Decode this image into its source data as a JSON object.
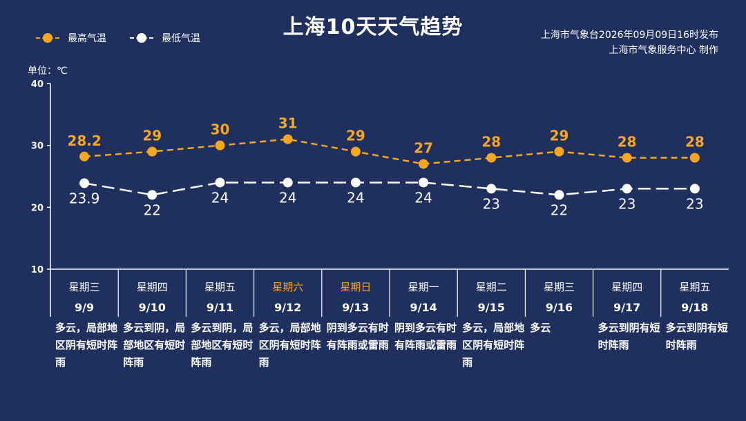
{
  "header": {
    "title": "上海10天天气趋势",
    "source_line1": "上海市气象台2026年09月09日16时发布",
    "source_line2": "上海市气象服务中心  制作"
  },
  "unit_label": "单位：℃",
  "colors": {
    "background": "#1f2f5e",
    "high": "#f5a623",
    "low": "#ffffff",
    "weekend": "#f5a623",
    "axis": "#ffffff"
  },
  "chart_data": {
    "type": "line",
    "title": "上海10天天气趋势",
    "ylabel": "单位：℃",
    "ylim": [
      10,
      40
    ],
    "yticks": [
      10,
      20,
      30,
      40
    ],
    "grid": false,
    "legend_position": "top-left",
    "categories": [
      "9/9",
      "9/10",
      "9/11",
      "9/12",
      "9/13",
      "9/14",
      "9/15",
      "9/16",
      "9/17",
      "9/18"
    ],
    "weekdays": [
      "星期三",
      "星期四",
      "星期五",
      "星期六",
      "星期日",
      "星期一",
      "星期二",
      "星期三",
      "星期四",
      "星期五"
    ],
    "weekend": [
      false,
      false,
      false,
      true,
      true,
      false,
      false,
      false,
      false,
      false
    ],
    "series": [
      {
        "name": "最高气温",
        "values": [
          28.2,
          29,
          30,
          31,
          29,
          27,
          28,
          29,
          28,
          28
        ],
        "labels": [
          "28.2",
          "29",
          "30",
          "31",
          "29",
          "27",
          "28",
          "29",
          "28",
          "28"
        ]
      },
      {
        "name": "最低气温",
        "values": [
          23.9,
          22,
          24,
          24,
          24,
          24,
          23,
          22,
          23,
          23
        ],
        "labels": [
          "23.9",
          "22",
          "24",
          "24",
          "24",
          "24",
          "23",
          "22",
          "23",
          "23"
        ]
      }
    ]
  },
  "descriptions": [
    "多云，局部地区阴有短时阵雨",
    "多云到阴，局部地区有短时阵雨",
    "多云到阴，局部地区有短时阵雨",
    "多云，局部地区阴有短时阵雨",
    "阴到多云有时有阵雨或雷雨",
    "阴到多云有时有阵雨或雷雨",
    "多云，局部地区阴有短时阵雨",
    "多云",
    "多云到阴有短时阵雨",
    "多云到阴有短时阵雨"
  ]
}
